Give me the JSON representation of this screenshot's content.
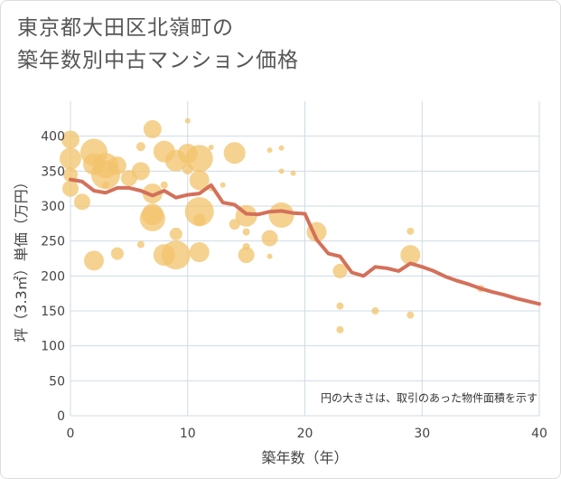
{
  "title_lines": [
    "東京都大田区北嶺町の",
    "築年数別中古マンション価格"
  ],
  "chart_data": {
    "type": "scatter",
    "title": "東京都大田区北嶺町の築年数別中古マンション価格",
    "xlabel": "築年数（年）",
    "ylabel": "坪（3.3㎡）単価（万円）",
    "xlim": [
      0,
      40
    ],
    "ylim": [
      0,
      450
    ],
    "xticks": [
      0,
      10,
      20,
      30,
      40
    ],
    "yticks": [
      0,
      50,
      100,
      150,
      200,
      250,
      300,
      350,
      400
    ],
    "grid": true,
    "note": "円の大きさは、取引のあった物件面積を示す",
    "colors": {
      "bubble": "#f2c36b",
      "line": "#d4705a",
      "grid": "#cfdbe6"
    },
    "bubbles": [
      {
        "x": 0,
        "y": 395,
        "s": 10
      },
      {
        "x": 0,
        "y": 368,
        "s": 12
      },
      {
        "x": 0,
        "y": 345,
        "s": 8
      },
      {
        "x": 0,
        "y": 325,
        "s": 9
      },
      {
        "x": 1,
        "y": 306,
        "s": 9
      },
      {
        "x": 2,
        "y": 377,
        "s": 15
      },
      {
        "x": 2,
        "y": 360,
        "s": 12
      },
      {
        "x": 2,
        "y": 222,
        "s": 11
      },
      {
        "x": 3,
        "y": 358,
        "s": 14
      },
      {
        "x": 3,
        "y": 345,
        "s": 16
      },
      {
        "x": 3,
        "y": 330,
        "s": 4
      },
      {
        "x": 4,
        "y": 358,
        "s": 10
      },
      {
        "x": 4,
        "y": 232,
        "s": 7
      },
      {
        "x": 5,
        "y": 340,
        "s": 9
      },
      {
        "x": 6,
        "y": 385,
        "s": 5
      },
      {
        "x": 6,
        "y": 350,
        "s": 10
      },
      {
        "x": 6,
        "y": 245,
        "s": 4
      },
      {
        "x": 7,
        "y": 410,
        "s": 10
      },
      {
        "x": 7,
        "y": 318,
        "s": 11
      },
      {
        "x": 7,
        "y": 288,
        "s": 12
      },
      {
        "x": 7,
        "y": 282,
        "s": 14
      },
      {
        "x": 8,
        "y": 378,
        "s": 12
      },
      {
        "x": 8,
        "y": 330,
        "s": 4
      },
      {
        "x": 8,
        "y": 230,
        "s": 12
      },
      {
        "x": 9,
        "y": 365,
        "s": 12
      },
      {
        "x": 9,
        "y": 260,
        "s": 7
      },
      {
        "x": 9,
        "y": 230,
        "s": 16
      },
      {
        "x": 10,
        "y": 422,
        "s": 3
      },
      {
        "x": 10,
        "y": 375,
        "s": 11
      },
      {
        "x": 10,
        "y": 353,
        "s": 6
      },
      {
        "x": 11,
        "y": 368,
        "s": 15
      },
      {
        "x": 11,
        "y": 337,
        "s": 11
      },
      {
        "x": 11,
        "y": 292,
        "s": 16
      },
      {
        "x": 11,
        "y": 280,
        "s": 7
      },
      {
        "x": 11,
        "y": 234,
        "s": 11
      },
      {
        "x": 12,
        "y": 384,
        "s": 3
      },
      {
        "x": 12,
        "y": 325,
        "s": 3
      },
      {
        "x": 13,
        "y": 330,
        "s": 3
      },
      {
        "x": 14,
        "y": 376,
        "s": 12
      },
      {
        "x": 14,
        "y": 274,
        "s": 6
      },
      {
        "x": 15,
        "y": 286,
        "s": 12
      },
      {
        "x": 15,
        "y": 263,
        "s": 4
      },
      {
        "x": 15,
        "y": 242,
        "s": 4
      },
      {
        "x": 15,
        "y": 230,
        "s": 9
      },
      {
        "x": 17,
        "y": 380,
        "s": 3
      },
      {
        "x": 17,
        "y": 254,
        "s": 9
      },
      {
        "x": 17,
        "y": 228,
        "s": 3
      },
      {
        "x": 18,
        "y": 383,
        "s": 3
      },
      {
        "x": 18,
        "y": 350,
        "s": 3
      },
      {
        "x": 18,
        "y": 287,
        "s": 14
      },
      {
        "x": 19,
        "y": 347,
        "s": 3
      },
      {
        "x": 21,
        "y": 263,
        "s": 11
      },
      {
        "x": 23,
        "y": 207,
        "s": 8
      },
      {
        "x": 23,
        "y": 157,
        "s": 4
      },
      {
        "x": 23,
        "y": 123,
        "s": 4
      },
      {
        "x": 26,
        "y": 150,
        "s": 4
      },
      {
        "x": 29,
        "y": 264,
        "s": 4
      },
      {
        "x": 29,
        "y": 230,
        "s": 11
      },
      {
        "x": 29,
        "y": 144,
        "s": 4
      },
      {
        "x": 35,
        "y": 182,
        "s": 4
      }
    ],
    "trend": {
      "x": [
        0,
        1,
        2,
        3,
        4,
        5,
        6,
        7,
        8,
        9,
        10,
        11,
        12,
        13,
        14,
        15,
        16,
        17,
        18,
        19,
        20,
        21,
        22,
        23,
        24,
        25,
        26,
        27,
        28,
        29,
        30,
        31,
        32,
        33,
        34,
        35,
        36,
        37,
        38,
        39,
        40
      ],
      "y": [
        338,
        335,
        322,
        319,
        326,
        326,
        322,
        315,
        322,
        312,
        316,
        318,
        330,
        305,
        302,
        289,
        288,
        292,
        293,
        290,
        289,
        252,
        232,
        228,
        205,
        200,
        213,
        211,
        207,
        218,
        213,
        207,
        199,
        193,
        188,
        182,
        177,
        173,
        168,
        164,
        160
      ]
    }
  }
}
